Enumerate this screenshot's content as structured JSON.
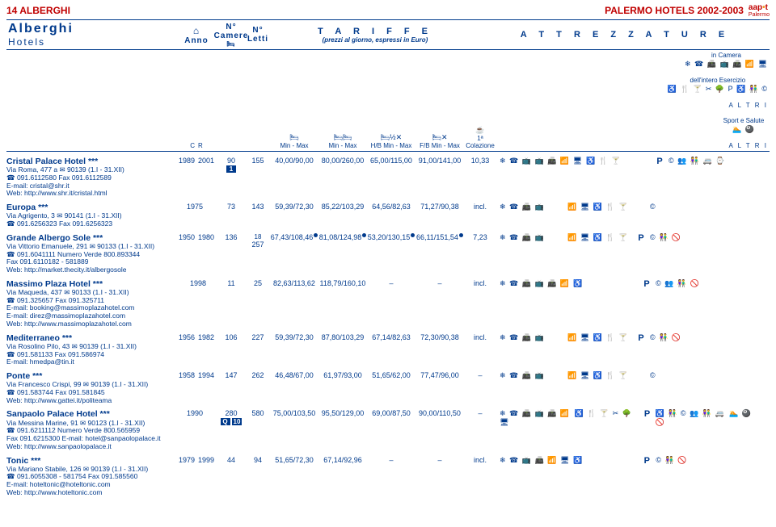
{
  "topbar": {
    "left": "14 ALBERGHI",
    "right": "PALERMO HOTELS 2002-2003",
    "logo_main": "aap",
    "logo_sub": "Palermo"
  },
  "header": {
    "name_title": "Alberghi",
    "name_sub": "Hotels",
    "anno": "Anno",
    "anno_sub_c": "C",
    "anno_sub_r": "R",
    "camere_top": "N°",
    "camere": "Camere",
    "letti_top": "N°",
    "letti": "Letti",
    "tariffe": "T A R I F F E",
    "tariffe_sub": "(prezzi al giorno, espressi in Euro)",
    "t1": "Min - Max",
    "t2": "Min - Max",
    "t3": "H/B Min - Max",
    "t4": "F/B Min - Max",
    "colazione_top": "1ª",
    "colazione": "Colazione",
    "attrezzature": "A T T R E Z Z A T U R E",
    "in_camera": "in Camera",
    "esercizio": "dell'intero Esercizio",
    "sport": "Sport e Salute",
    "altri": "A L T R I"
  },
  "hotels": [
    {
      "name": "Cristal Palace Hotel ***",
      "addr": "Via Roma, 477 a ✉ 90139 (1.I - 31.XII)",
      "tel": "☎ 091.6112580 Fax 091.6112589",
      "email": "E-mail: cristal@shr.it",
      "web": "Web: http://www.shr.it/cristal.html",
      "year_c": "1989",
      "year_r": "2001",
      "camere": "90",
      "cam_extra": [
        "1"
      ],
      "letti": "155",
      "t1": "40,00/90,00",
      "t1_dot": false,
      "t2": "80,00/260,00",
      "t2_dot": false,
      "t3": "65,00/115,00",
      "t3_dot": false,
      "t4": "91,00/141,00",
      "t4_dot": false,
      "colaz": "10,33",
      "amen_cam": "❄ ☎ 📺   📺 📠 📶 🖥",
      "amen_eser": "♿ 🍴 🍸",
      "p": "P",
      "amen_altri": "© 👥 👫 🚐 ⌚"
    },
    {
      "name": "Europa ***",
      "addr": "Via Agrigento, 3 ✉ 90141 (1.I - 31.XII)",
      "tel": "☎ 091.6256323 Fax 091.6256323",
      "email": "",
      "web": "",
      "year_c": "1975",
      "year_r": "",
      "camere": "73",
      "cam_extra": [],
      "letti": "143",
      "t1": "59,39/72,30",
      "t1_dot": false,
      "t2": "85,22/103,29",
      "t2_dot": false,
      "t3": "64,56/82,63",
      "t3_dot": false,
      "t4": "71,27/90,38",
      "t4_dot": false,
      "colaz": "incl.",
      "amen_cam": "❄ ☎ 📠 📺",
      "amen_eser": "📶 🖥 ♿ 🍴 🍸",
      "p": "",
      "amen_altri": "©"
    },
    {
      "name": "Grande Albergo Sole ***",
      "addr": "Via Vittorio Emanuele, 291 ✉ 90133 (1.I - 31.XII)",
      "tel": "☎ 091.6041111 Numero Verde 800.893344",
      "fax": "Fax 091.6110182 - 581889",
      "web": "Web: http://market.thecity.it/albergosole",
      "year_c": "1950",
      "year_r": "1980",
      "camere": "136",
      "cam_extra": [],
      "letti_pre": "18",
      "letti": "257",
      "t1": "67,43/108,46",
      "t1_dot": true,
      "t2": "81,08/124,98",
      "t2_dot": true,
      "t3": "53,20/130,15",
      "t3_dot": true,
      "t4": "66,11/151,54",
      "t4_dot": true,
      "colaz": "7,23",
      "amen_cam": "❄ ☎ 📠 📺",
      "amen_eser": "📶 🖥 ♿ 🍴 🍸",
      "p": "P",
      "amen_altri": "©   👫 🚫"
    },
    {
      "name": "Massimo Plaza Hotel ***",
      "addr": "Via Maqueda, 437 ✉ 90133 (1.I - 31.XII)",
      "tel": "☎ 091.325657 Fax 091.325711",
      "email": "E-mail: booking@massimoplazahotel.com",
      "email2": "E-mail: direz@massimoplazahotel.com",
      "web": "Web: http://www.massimoplazahotel.com",
      "year_c": "",
      "year_r": "1998",
      "camere": "11",
      "cam_extra": [],
      "letti": "25",
      "t1": "82,63/113,62",
      "t1_dot": false,
      "t2": "118,79/160,10",
      "t2_dot": false,
      "t3": "–",
      "t4": "–",
      "colaz": "incl.",
      "amen_cam": "❄ ☎ 📠 📺 📠 📶",
      "amen_eser": "♿",
      "p": "P",
      "amen_altri": "© 👥 👫 🚫"
    },
    {
      "name": "Mediterraneo ***",
      "addr": "Via Rosolino Pilo, 43 ✉ 90139 (1.I - 31.XII)",
      "tel": "☎ 091.581133 Fax 091.586974",
      "email": "E-mail: hmedpa@tin.it",
      "web": "",
      "year_c": "1956",
      "year_r": "1982",
      "camere": "106",
      "cam_extra": [],
      "letti": "227",
      "t1": "59,39/72,30",
      "t1_dot": false,
      "t2": "87,80/103,29",
      "t2_dot": false,
      "t3": "67,14/82,63",
      "t3_dot": false,
      "t4": "72,30/90,38",
      "t4_dot": false,
      "colaz": "incl.",
      "amen_cam": "❄ ☎ 📠 📺",
      "amen_eser": "📶 🖥 ♿ 🍴 🍸",
      "p": "P",
      "amen_altri": "©   👫 🚫"
    },
    {
      "name": "Ponte ***",
      "addr": "Via Francesco Crispi, 99 ✉ 90139 (1.I - 31.XII)",
      "tel": "☎ 091.583744 Fax 091.581845",
      "web": "Web: http://www.gattei.it/politeama",
      "year_c": "1958",
      "year_r": "1994",
      "camere": "147",
      "cam_extra": [],
      "letti": "262",
      "t1": "46,48/67,00",
      "t1_dot": false,
      "t2": "61,97/93,00",
      "t2_dot": false,
      "t3": "51,65/62,00",
      "t3_dot": false,
      "t4": "77,47/96,00",
      "t4_dot": false,
      "colaz": "–",
      "amen_cam": "❄ ☎ 📠 📺",
      "amen_eser": "📶 🖥 ♿ 🍴 🍸",
      "p": "",
      "amen_altri": "©"
    },
    {
      "name": "Sanpaolo Palace Hotel ***",
      "addr": "Via Messina Marine, 91 ✉ 90123 (1.I - 31.XII)",
      "tel": "☎ 091.6211112 Numero Verde 800.565959",
      "fax": "Fax 091.6215300 E-mail: hotel@sanpaolopalace.it",
      "web": "Web: http://www.sanpaolopalace.it",
      "year_c": "1990",
      "year_r": "",
      "camere": "280",
      "cam_extra": [
        "Q",
        "10"
      ],
      "letti": "580",
      "t1": "75,00/103,50",
      "t1_dot": false,
      "t2": "95,50/129,00",
      "t2_dot": false,
      "t3": "69,00/87,50",
      "t3_dot": false,
      "t4": "90,00/110,50",
      "t4_dot": false,
      "colaz": "–",
      "amen_cam": "❄ ☎ 📠 📺 📠 📶 🖥",
      "amen_eser": "♿ 🍴 🍸 ✂ 🌳",
      "p": "P",
      "amen_altri": "♿ 👫 © 👥 👫 🚐 🚫",
      "altri2": "🏊 🎱"
    },
    {
      "name": "Tonic ***",
      "addr": "Via Mariano Stabile, 126 ✉ 90139 (1.I - 31.XII)",
      "tel": "☎ 091.6055308 - 581754 Fax 091.585560",
      "email": "E-mail: hoteltonic@hoteltonic.com",
      "web": "Web: http://www.hoteltonic.com",
      "year_c": "1979",
      "year_r": "1999",
      "camere": "44",
      "cam_extra": [],
      "letti": "94",
      "t1": "51,65/72,30",
      "t1_dot": false,
      "t2": "67,14/92,96",
      "t2_dot": false,
      "t3": "–",
      "t4": "–",
      "colaz": "incl.",
      "amen_cam": "❄ ☎   📺 📠 📶 🖥",
      "amen_eser": "♿",
      "p": "P",
      "amen_altri": "©   👫 🚫"
    }
  ]
}
